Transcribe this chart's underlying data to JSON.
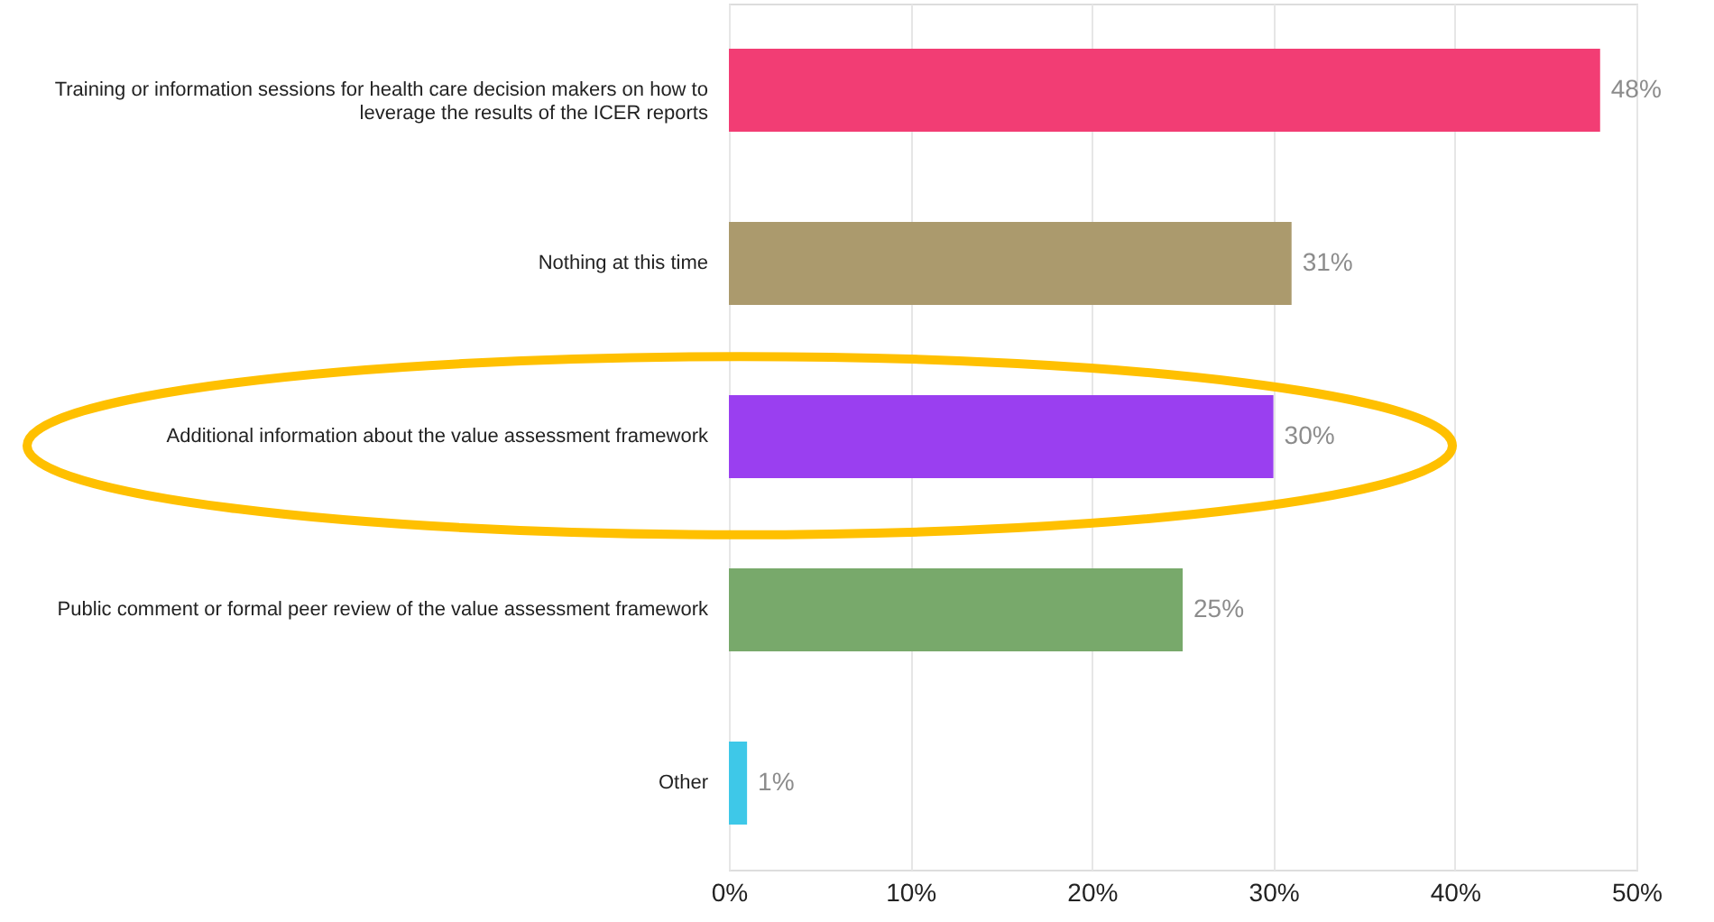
{
  "chart_data": {
    "type": "bar",
    "orientation": "horizontal",
    "categories": [
      "Training or information sessions for health care decision makers on how to leverage the results of the ICER reports",
      "Nothing at this time",
      "Additional information about the value assessment framework",
      "Public comment or formal peer review of the value assessment framework",
      "Other"
    ],
    "values": [
      48,
      31,
      30,
      25,
      1
    ],
    "colors": [
      "#f23d74",
      "#ab9a6d",
      "#9a3ff0",
      "#78a96b",
      "#3ec8e8"
    ],
    "value_labels": [
      "48%",
      "31%",
      "30%",
      "25%",
      "1%"
    ],
    "xlim": [
      0,
      50
    ],
    "xticks": [
      {
        "value": 0,
        "label": "0%"
      },
      {
        "value": 10,
        "label": "10%"
      },
      {
        "value": 20,
        "label": "20%"
      },
      {
        "value": 30,
        "label": "30%"
      },
      {
        "value": 40,
        "label": "40%"
      },
      {
        "value": 50,
        "label": "50%"
      }
    ],
    "grid": "x"
  }
}
